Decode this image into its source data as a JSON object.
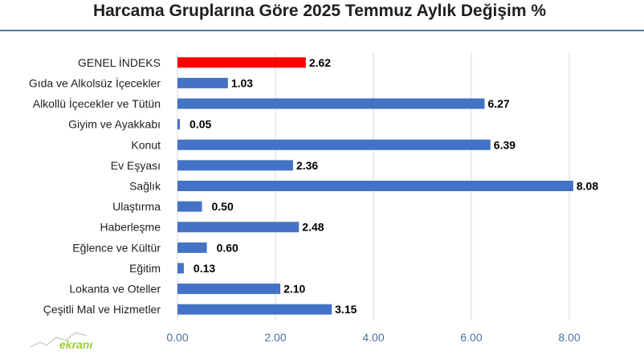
{
  "chart_data": {
    "type": "bar",
    "orientation": "horizontal",
    "title": "Harcama Gruplarına Göre 2025 Temmuz Aylık Değişim %",
    "categories": [
      "GENEL İNDEKS",
      "Gıda ve Alkolsüz İçecekler",
      "Alkollü İçecekler ve Tütün",
      "Giyim ve Ayakkabı",
      "Konut",
      "Ev Eşyası",
      "Sağlık",
      "Ulaştırma",
      "Haberleşme",
      "Eğlence ve Kültür",
      "Eğitim",
      "Lokanta ve Oteller",
      "Çeşitli Mal ve Hizmetler"
    ],
    "values": [
      2.62,
      1.03,
      6.27,
      0.05,
      6.39,
      2.36,
      8.08,
      0.5,
      2.48,
      0.6,
      0.13,
      2.1,
      3.15
    ],
    "value_labels": [
      "2.62",
      "1.03",
      "6.27",
      "0.05",
      "6.39",
      "2.36",
      "8.08",
      "0.50",
      "2.48",
      "0.60",
      "0.13",
      "2.10",
      "3.15"
    ],
    "highlight_index": 0,
    "xlim": [
      0,
      8
    ],
    "xticks": [
      "0.00",
      "2.00",
      "4.00",
      "6.00",
      "8.00"
    ],
    "xtick_values": [
      0,
      2,
      4,
      6,
      8
    ],
    "grid": true,
    "colors": {
      "bar": "#4472c4",
      "highlight": "#ff0000",
      "highlight_label": "#ff0000",
      "grid": "#d9d9d9"
    }
  },
  "watermark": {
    "text": "ekranı"
  }
}
